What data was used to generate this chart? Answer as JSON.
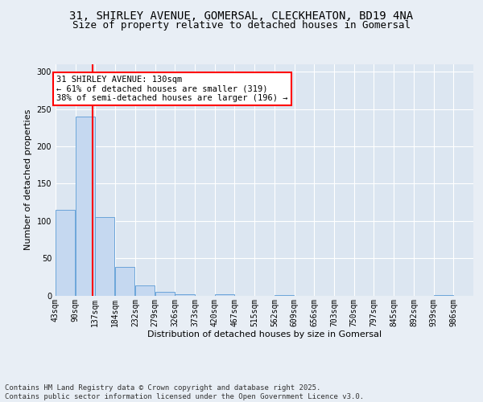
{
  "title_line1": "31, SHIRLEY AVENUE, GOMERSAL, CLECKHEATON, BD19 4NA",
  "title_line2": "Size of property relative to detached houses in Gomersal",
  "xlabel": "Distribution of detached houses by size in Gomersal",
  "ylabel": "Number of detached properties",
  "bar_color": "#c5d8f0",
  "bar_edge_color": "#5b9bd5",
  "background_color": "#e8eef5",
  "plot_bg_color": "#dce6f1",
  "grid_color": "#ffffff",
  "red_line_x": 130,
  "annotation_text": "31 SHIRLEY AVENUE: 130sqm\n← 61% of detached houses are smaller (319)\n38% of semi-detached houses are larger (196) →",
  "categories": [
    "43sqm",
    "90sqm",
    "137sqm",
    "184sqm",
    "232sqm",
    "279sqm",
    "326sqm",
    "373sqm",
    "420sqm",
    "467sqm",
    "515sqm",
    "562sqm",
    "609sqm",
    "656sqm",
    "703sqm",
    "750sqm",
    "797sqm",
    "845sqm",
    "892sqm",
    "939sqm",
    "986sqm"
  ],
  "bin_edges": [
    43,
    90,
    137,
    184,
    232,
    279,
    326,
    373,
    420,
    467,
    515,
    562,
    609,
    656,
    703,
    750,
    797,
    845,
    892,
    939,
    986
  ],
  "bin_width": 47,
  "values": [
    115,
    240,
    105,
    38,
    14,
    5,
    2,
    0,
    2,
    0,
    0,
    1,
    0,
    0,
    0,
    0,
    0,
    0,
    0,
    1,
    0
  ],
  "ylim": [
    0,
    310
  ],
  "yticks": [
    0,
    50,
    100,
    150,
    200,
    250,
    300
  ],
  "footnote": "Contains HM Land Registry data © Crown copyright and database right 2025.\nContains public sector information licensed under the Open Government Licence v3.0.",
  "title_fontsize": 10,
  "subtitle_fontsize": 9,
  "axis_label_fontsize": 8,
  "tick_fontsize": 7,
  "footnote_fontsize": 6.5,
  "annotation_fontsize": 7.5
}
